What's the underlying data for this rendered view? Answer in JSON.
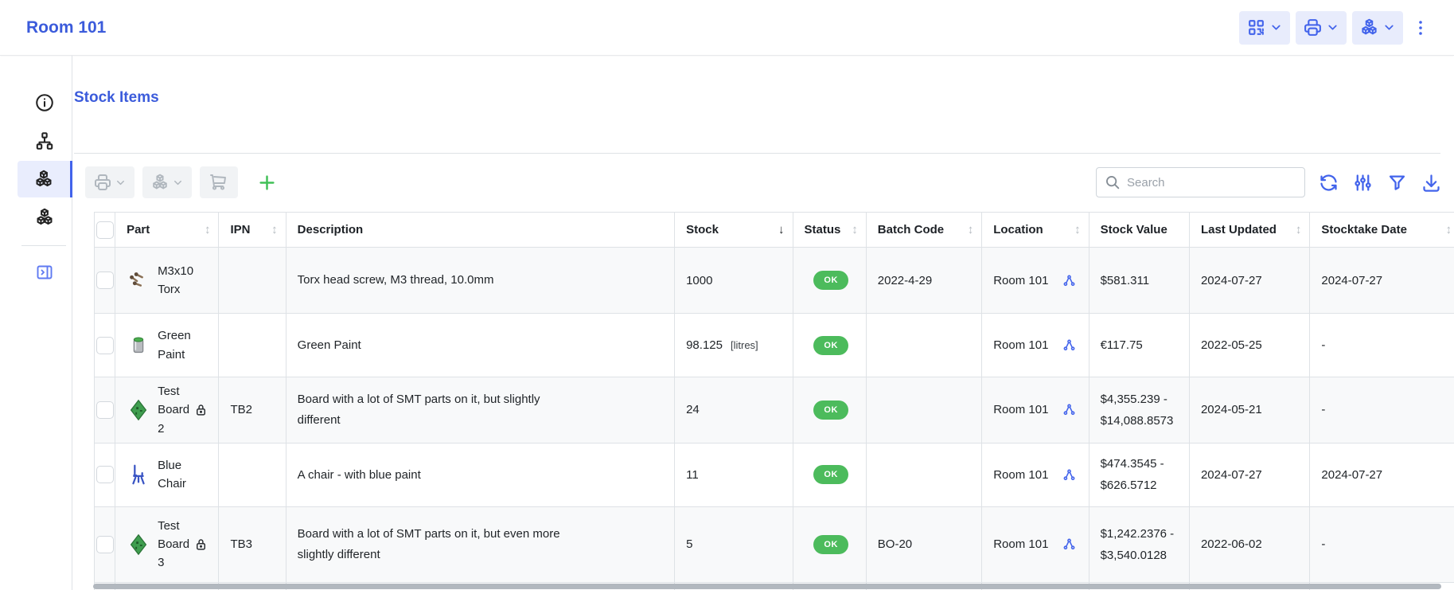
{
  "page": {
    "title": "Room 101"
  },
  "header_actions": {
    "buttons": [
      {
        "name": "barcode-actions",
        "icon": "qr-code-icon",
        "has_dropdown": true
      },
      {
        "name": "print-actions",
        "icon": "printer-icon",
        "has_dropdown": true
      },
      {
        "name": "stock-actions",
        "icon": "stock-cubes-icon",
        "has_dropdown": true
      }
    ],
    "menu_icon": "dots-vertical-icon"
  },
  "sidebar": {
    "items": [
      {
        "name": "details",
        "icon": "info-circle-icon",
        "active": false
      },
      {
        "name": "sublocations",
        "icon": "sitemap-icon",
        "active": false
      },
      {
        "name": "stock-items",
        "icon": "stock-cubes-icon",
        "active": true
      },
      {
        "name": "default-parts",
        "icon": "stock-cubes-icon",
        "active": false
      }
    ],
    "collapse_icon": "panel-right-icon"
  },
  "panel": {
    "heading": "Stock Items",
    "toolbar": {
      "disabled_buttons": [
        {
          "name": "print-options",
          "icon": "printer-icon"
        },
        {
          "name": "stock-options",
          "icon": "stock-cubes-icon"
        },
        {
          "name": "order-stock",
          "icon": "cart-icon"
        }
      ],
      "add_icon": "plus-icon",
      "search": {
        "placeholder": "Search",
        "value": ""
      },
      "action_icons": [
        "refresh-icon",
        "adjustments-icon",
        "filter-icon",
        "download-icon"
      ]
    }
  },
  "table": {
    "columns": [
      {
        "label": "Part",
        "sort": "both"
      },
      {
        "label": "IPN",
        "sort": "both"
      },
      {
        "label": "Description",
        "sort": "none"
      },
      {
        "label": "Stock",
        "sort": "desc"
      },
      {
        "label": "Status",
        "sort": "both"
      },
      {
        "label": "Batch Code",
        "sort": "both"
      },
      {
        "label": "Location",
        "sort": "both"
      },
      {
        "label": "Stock Value",
        "sort": "none"
      },
      {
        "label": "Last Updated",
        "sort": "both"
      },
      {
        "label": "Stocktake Date",
        "sort": "both"
      }
    ],
    "rows": [
      {
        "part": "M3x10 Torx",
        "thumb": "screws",
        "locked": false,
        "ipn": "",
        "description": "Torx head screw, M3 thread, 10.0mm",
        "stock": "1000",
        "stock_unit": "",
        "status": "OK",
        "batch": "2022-4-29",
        "location": "Room 101",
        "stock_value": "$581.311",
        "last_updated": "2024-07-27",
        "stocktake": "2024-07-27"
      },
      {
        "part": "Green Paint",
        "thumb": "paint",
        "locked": false,
        "ipn": "",
        "description": "Green Paint",
        "stock": "98.125",
        "stock_unit": "[litres]",
        "status": "OK",
        "batch": "",
        "location": "Room 101",
        "stock_value": "€117.75",
        "last_updated": "2022-05-25",
        "stocktake": "-"
      },
      {
        "part": "Test Board 2",
        "thumb": "pcb",
        "locked": true,
        "ipn": "TB2",
        "description": "Board with a lot of SMT parts on it, but slightly different",
        "stock": "24",
        "stock_unit": "",
        "status": "OK",
        "batch": "",
        "location": "Room 101",
        "stock_value": "$4,355.239 - $14,088.8573",
        "last_updated": "2024-05-21",
        "stocktake": "-"
      },
      {
        "part": "Blue Chair",
        "thumb": "chair",
        "locked": false,
        "ipn": "",
        "description": "A chair - with blue paint",
        "stock": "11",
        "stock_unit": "",
        "status": "OK",
        "batch": "",
        "location": "Room 101",
        "stock_value": "$474.3545 - $626.5712",
        "last_updated": "2024-07-27",
        "stocktake": "2024-07-27"
      },
      {
        "part": "Test Board 3",
        "thumb": "pcb",
        "locked": true,
        "ipn": "TB3",
        "description": "Board with a lot of SMT parts on it, but even more slightly different",
        "stock": "5",
        "stock_unit": "",
        "status": "OK",
        "batch": "BO-20",
        "location": "Room 101",
        "stock_value": "$1,242.2376 - $3,540.0128",
        "last_updated": "2022-06-02",
        "stocktake": "-"
      }
    ]
  },
  "colors": {
    "accent": "#4263eb",
    "title_blue": "#3b5bdb",
    "status_ok_green": "#4cbb5c",
    "add_green": "#40c057"
  }
}
